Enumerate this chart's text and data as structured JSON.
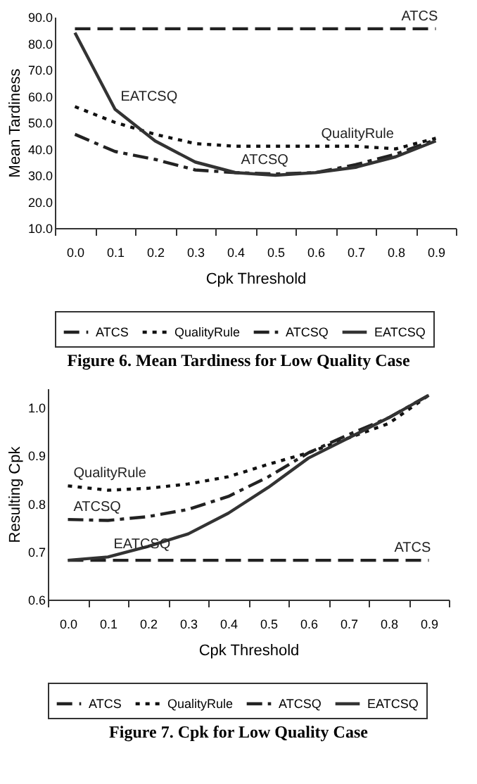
{
  "chart_data": [
    {
      "type": "line",
      "title": "Figure 6.  Mean Tardiness for Low Quality Case",
      "xlabel": "Cpk Threshold",
      "ylabel": "Mean Tardiness",
      "categories": [
        "0.0",
        "0.1",
        "0.2",
        "0.3",
        "0.4",
        "0.5",
        "0.6",
        "0.7",
        "0.8",
        "0.9"
      ],
      "ylim": [
        10,
        90
      ],
      "yticks": [
        {
          "value": 10,
          "label": "10.0"
        },
        {
          "value": 20,
          "label": "20.0"
        },
        {
          "value": 30,
          "label": "30.0"
        },
        {
          "value": 40,
          "label": "40.0"
        },
        {
          "value": 50,
          "label": "50.0"
        },
        {
          "value": 60,
          "label": "60.0"
        },
        {
          "value": 70,
          "label": "70.0"
        },
        {
          "value": 80,
          "label": "80.0"
        },
        {
          "value": 90,
          "label": "90.0"
        }
      ],
      "series": [
        {
          "name": "ATCS",
          "color": "#222222",
          "line_style": "dashed",
          "values": [
            85.5,
            85.5,
            85.5,
            85.5,
            85.5,
            85.5,
            85.5,
            85.5,
            85.5,
            85.5
          ]
        },
        {
          "name": "QualityRule",
          "color": "#111111",
          "line_style": "dotted",
          "values": [
            56,
            50,
            45.5,
            42,
            41,
            41,
            41,
            41,
            40,
            44
          ]
        },
        {
          "name": "ATCSQ",
          "color": "#222222",
          "line_style": "dashdot",
          "values": [
            45.5,
            39,
            36,
            32,
            31,
            30.5,
            31,
            34,
            38,
            43.5
          ]
        },
        {
          "name": "EATCSQ",
          "color": "#333333",
          "line_style": "solid",
          "values": [
            84,
            55,
            43,
            35,
            31,
            30,
            31,
            33,
            37,
            43
          ]
        }
      ],
      "annotations": [
        {
          "text": "ATCS",
          "x": "0.8",
          "y": 85.5
        },
        {
          "text": "EATCSQ",
          "x": "0.1",
          "y": 55
        },
        {
          "text": "QualityRule",
          "x": "0.6",
          "y": 41
        },
        {
          "text": "ATCSQ",
          "x": "0.4",
          "y": 31
        }
      ],
      "legend": "bottom",
      "grid": false
    },
    {
      "type": "line",
      "title": "Figure 7.  Cpk for Low Quality Case",
      "xlabel": "Cpk Threshold",
      "ylabel": "Resulting Cpk",
      "categories": [
        "0.0",
        "0.1",
        "0.2",
        "0.3",
        "0.4",
        "0.5",
        "0.6",
        "0.7",
        "0.8",
        "0.9"
      ],
      "ylim": [
        0.6,
        1.04
      ],
      "yticks": [
        0.6,
        0.7,
        0.8,
        0.9,
        {
          "value": 1,
          "label": "1.0"
        }
      ],
      "series": [
        {
          "name": "ATCS",
          "color": "#222222",
          "line_style": "dashed",
          "values": [
            0.682,
            0.682,
            0.682,
            0.682,
            0.682,
            0.682,
            0.682,
            0.682,
            0.682,
            0.682
          ]
        },
        {
          "name": "QualityRule",
          "color": "#111111",
          "line_style": "dotted",
          "values": [
            0.837,
            0.828,
            0.832,
            0.841,
            0.856,
            0.882,
            0.906,
            0.937,
            0.967,
            1.026
          ]
        },
        {
          "name": "ATCSQ",
          "color": "#222222",
          "line_style": "dashdot",
          "values": [
            0.767,
            0.765,
            0.773,
            0.788,
            0.815,
            0.856,
            0.906,
            0.944,
            0.979,
            1.026
          ]
        },
        {
          "name": "EATCSQ",
          "color": "#333333",
          "line_style": "solid",
          "values": [
            0.682,
            0.689,
            0.711,
            0.737,
            0.78,
            0.834,
            0.895,
            0.937,
            0.979,
            1.026
          ]
        }
      ],
      "annotations": [
        {
          "text": "QualityRule",
          "x": "0.0",
          "y": 0.837
        },
        {
          "text": "ATCSQ",
          "x": "0.0",
          "y": 0.767
        },
        {
          "text": "EATCSQ",
          "x": "0.1",
          "y": 0.689
        },
        {
          "text": "ATCS",
          "x": "0.8",
          "y": 0.682
        }
      ],
      "legend": "bottom",
      "grid": false
    }
  ]
}
